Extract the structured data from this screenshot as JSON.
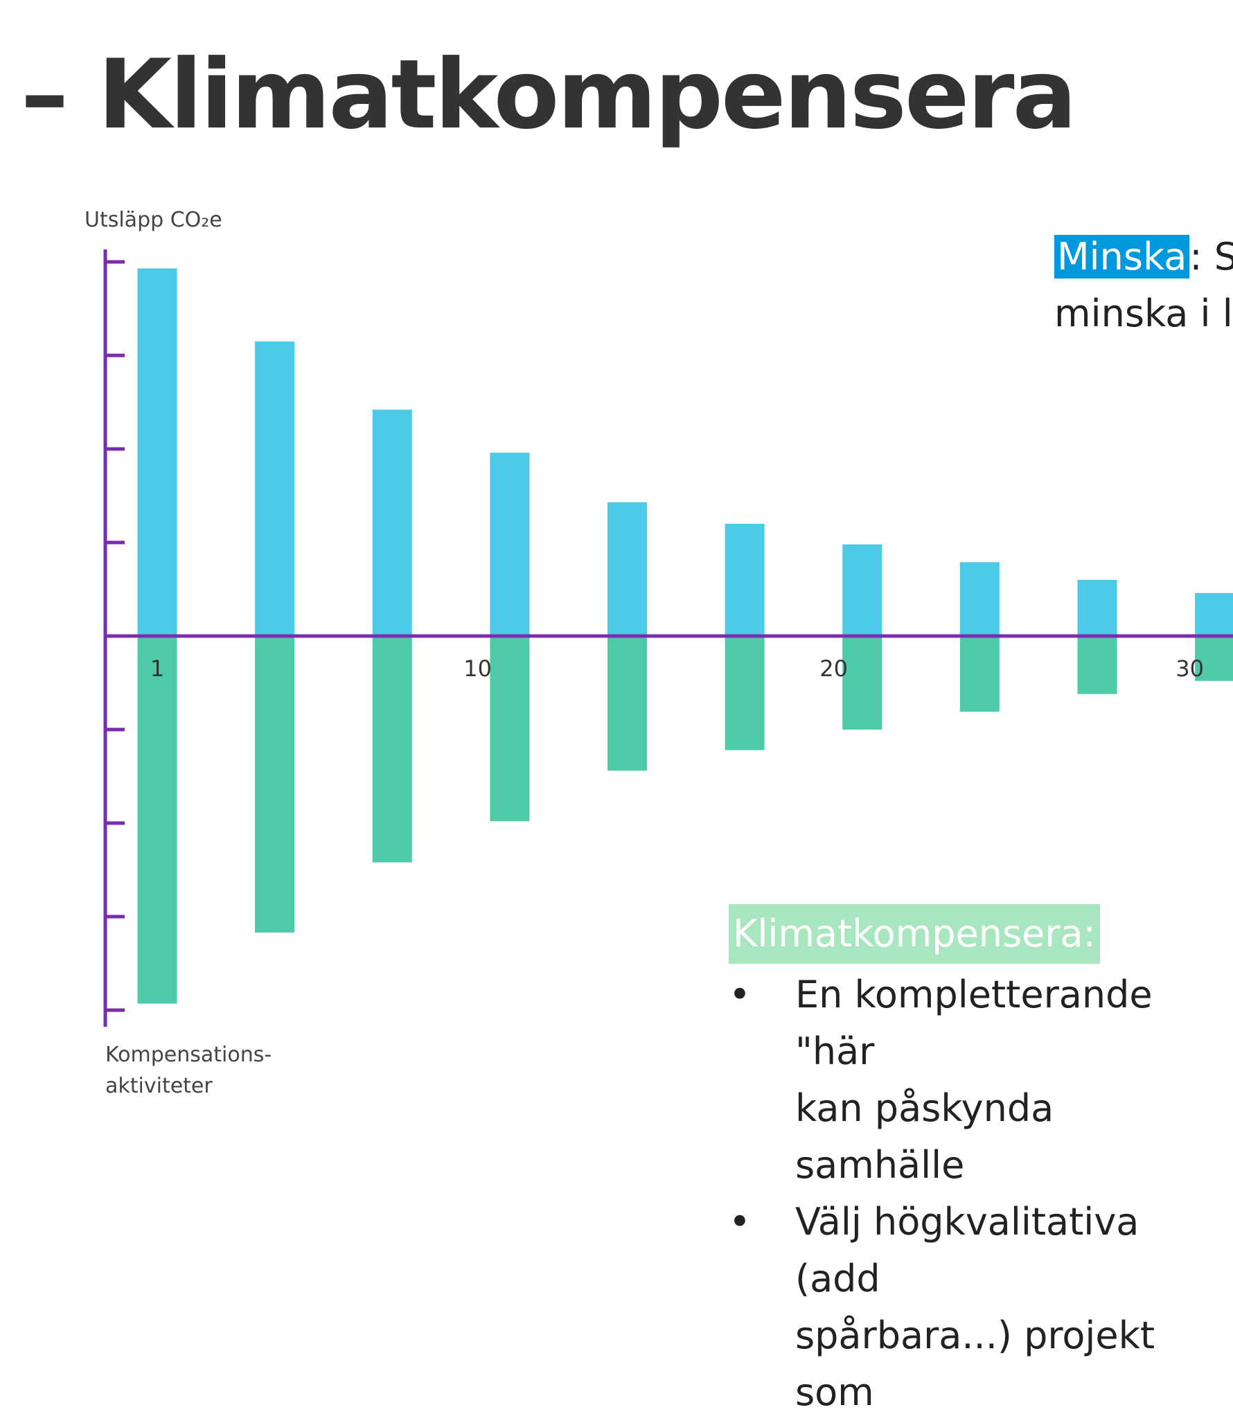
{
  "slide": {
    "title": "– Klimatkompensera"
  },
  "minska": {
    "highlight": "Minska",
    "rest_line1": ": S",
    "line2": "minska i li"
  },
  "klimatkompensera": {
    "heading": "Klimatkompensera:",
    "bullets": [
      "En kompletterande \"här\nkan påskynda samhälle",
      "Välj högkvalitativa (add\nspårbara...) projekt som"
    ]
  },
  "colors": {
    "axis": "#7a2bb0",
    "emissions_bar": "#4cc9e6",
    "compensation_bar": "#4ecaa9",
    "minska_highlight": "#0099dd",
    "klimatkompensera_highlight": "#a8e6c0"
  },
  "chart_data": {
    "type": "bar",
    "x_tick_labels": [
      "1",
      "10",
      "20",
      "30"
    ],
    "x_tick_values": [
      1,
      10,
      20,
      30
    ],
    "ylabel": "Utsläpp CO₂e",
    "ylabel_negative": "Kompensations-aktiviteter",
    "x": [
      1,
      4.3,
      7.6,
      10.9,
      14.2,
      17.5,
      20.8,
      24.1,
      27.4,
      30.7
    ],
    "series": [
      {
        "values": [
          3.93,
          3.15,
          2.42,
          1.96,
          1.43,
          1.2,
          0.98,
          0.79,
          0.6,
          0.46
        ]
      },
      {
        "values": [
          -3.93,
          -3.17,
          -2.42,
          -1.98,
          -1.44,
          -1.22,
          -1.0,
          -0.81,
          -0.62,
          -0.48
        ]
      }
    ],
    "ylim": [
      -4,
      4
    ],
    "y_ticks": [
      -4,
      -3,
      -2,
      -1,
      1,
      2,
      3,
      4
    ],
    "y_tick_labels_shown": false,
    "grid": false,
    "legend": "none"
  }
}
